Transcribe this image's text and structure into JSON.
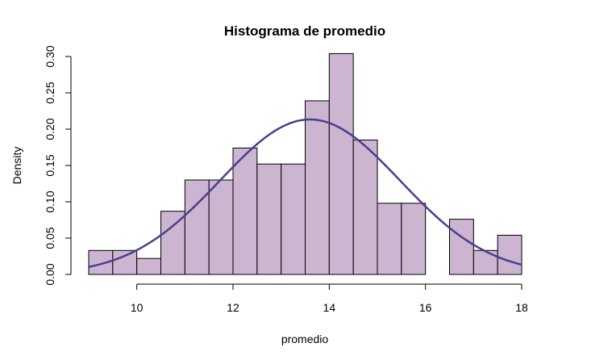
{
  "chart_data": {
    "type": "bar",
    "title": "Histograma de promedio",
    "xlabel": "promedio",
    "ylabel": "Density",
    "xlim": [
      9,
      18
    ],
    "ylim": [
      0,
      0.3
    ],
    "x_ticks": [
      "10",
      "12",
      "14",
      "16",
      "18"
    ],
    "y_ticks": [
      "0.00",
      "0.05",
      "0.10",
      "0.15",
      "0.20",
      "0.25",
      "0.30"
    ],
    "bin_edges": [
      9.0,
      9.5,
      10.0,
      10.5,
      11.0,
      11.5,
      12.0,
      12.5,
      13.0,
      13.5,
      14.0,
      14.5,
      15.0,
      15.5,
      16.0,
      16.5,
      17.0,
      17.5,
      18.0
    ],
    "values": [
      0.033,
      0.033,
      0.022,
      0.087,
      0.13,
      0.13,
      0.174,
      0.152,
      0.152,
      0.239,
      0.304,
      0.185,
      0.098,
      0.098,
      0.0,
      0.076,
      0.033,
      0.054
    ],
    "curve": {
      "type": "normal-density",
      "mean": 13.6,
      "sd": 1.87
    },
    "grid": false,
    "colors": {
      "bar_fill": "#CCB5D0",
      "bar_stroke": "#000000",
      "curve": "#4B3F8E"
    }
  }
}
